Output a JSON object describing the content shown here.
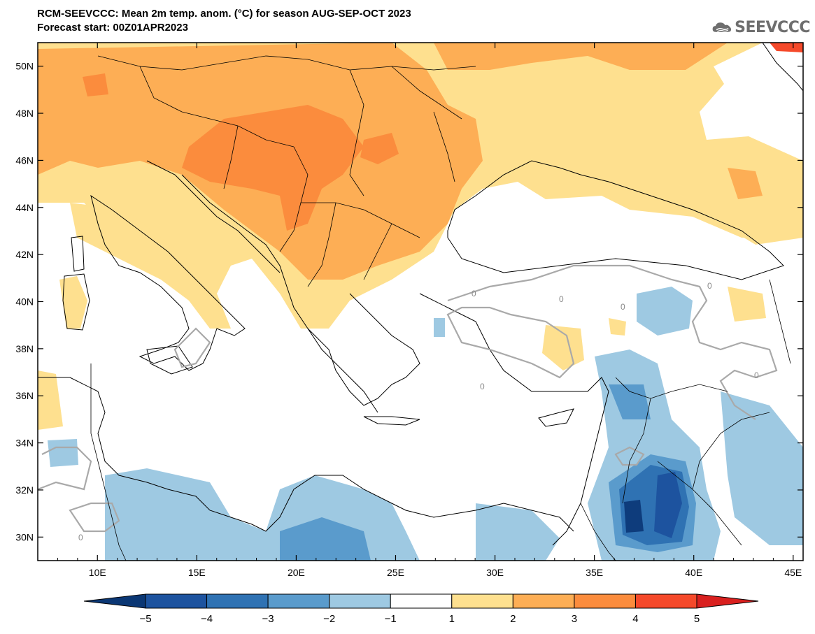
{
  "header": {
    "title": "RCM-SEEVCCC: Mean 2m temp. anom. (°C) for season AUG-SEP-OCT 2023",
    "subtitle": "Forecast start: 00Z01APR2023"
  },
  "logo": {
    "text": "SEEVCCC",
    "icon": "cloud-icon",
    "color": "#6e6e6e"
  },
  "map": {
    "lat_ticks": [
      {
        "value": 30,
        "label": "30N"
      },
      {
        "value": 32,
        "label": "32N"
      },
      {
        "value": 34,
        "label": "34N"
      },
      {
        "value": 36,
        "label": "36N"
      },
      {
        "value": 38,
        "label": "38N"
      },
      {
        "value": 40,
        "label": "40N"
      },
      {
        "value": 42,
        "label": "42N"
      },
      {
        "value": 44,
        "label": "44N"
      },
      {
        "value": 46,
        "label": "46N"
      },
      {
        "value": 48,
        "label": "48N"
      },
      {
        "value": 50,
        "label": "50N"
      }
    ],
    "lon_ticks": [
      {
        "value": 10,
        "label": "10E"
      },
      {
        "value": 15,
        "label": "15E"
      },
      {
        "value": 20,
        "label": "20E"
      },
      {
        "value": 25,
        "label": "25E"
      },
      {
        "value": 30,
        "label": "30E"
      },
      {
        "value": 35,
        "label": "35E"
      },
      {
        "value": 40,
        "label": "40E"
      },
      {
        "value": 45,
        "label": "45E"
      }
    ],
    "lon_range": [
      7,
      45.5
    ],
    "lat_range": [
      29,
      51
    ],
    "contour_label": "0",
    "contour_color": "#a9a9a9",
    "features": [
      {
        "name": "warm-anomaly-north",
        "level": 2,
        "color": "#fec965"
      },
      {
        "name": "warm-anomaly-balkans",
        "level": 3,
        "color": "#fdae55"
      },
      {
        "name": "warm-anomaly-pannonian",
        "level": 3.5,
        "color": "#fb8c3d"
      },
      {
        "name": "cold-anomaly-libya",
        "level": -2,
        "color": "#9ec9e2"
      },
      {
        "name": "cold-anomaly-jordan-core",
        "level": -5,
        "color": "#0e3c7c"
      }
    ]
  },
  "colorbar": {
    "labels": [
      "−5",
      "−4",
      "−3",
      "−2",
      "−1",
      "1",
      "2",
      "3",
      "4",
      "5"
    ],
    "colors": [
      "#1d539f",
      "#2f72b3",
      "#5a9bcc",
      "#9ec9e2",
      "#ffffff",
      "#fee08f",
      "#fdae55",
      "#fb8c3d",
      "#f5492a"
    ],
    "low_extend_color": "#0b3774",
    "high_extend_color": "#d9201f"
  }
}
